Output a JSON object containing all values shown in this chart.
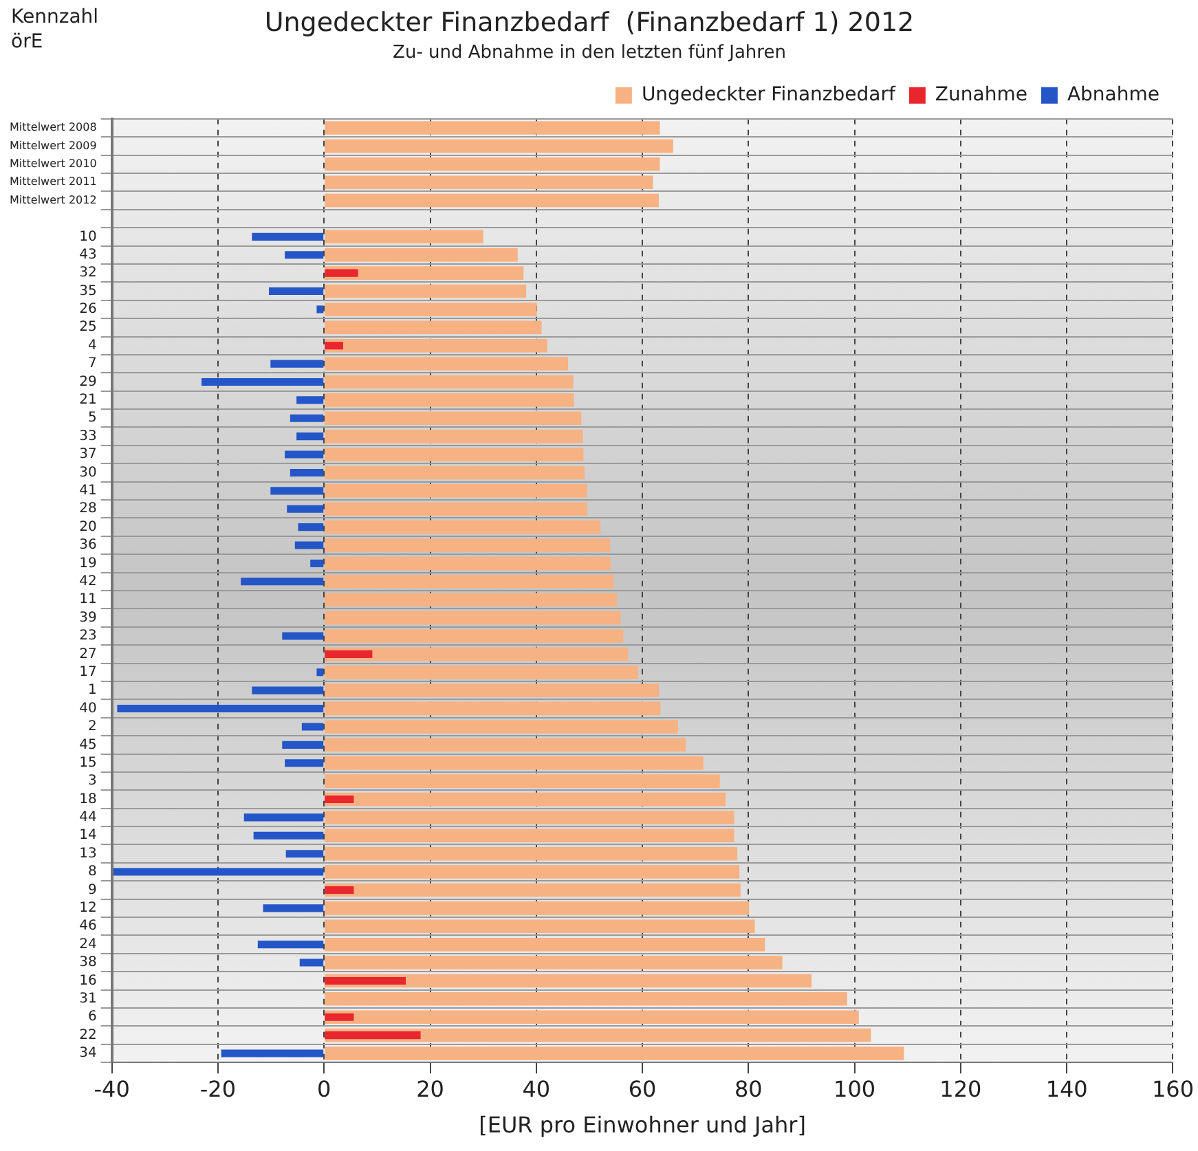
{
  "chart_data": {
    "type": "bar",
    "orientation": "horizontal",
    "title": "Ungedeckter Finanzbedarf  (Finanzbedarf 1) 2012",
    "subtitle": "Zu- und Abnahme in den letzten fünf Jahren",
    "ylabel": "Kennzahl örE",
    "xlabel": "[EUR pro Einwohner und Jahr]",
    "categories": [
      "Mittelwert 2008",
      "Mittelwert 2009",
      "Mittelwert 2010",
      "Mittelwert 2011",
      "Mittelwert 2012",
      null,
      "10",
      "43",
      "32",
      "35",
      "26",
      "25",
      "4",
      "7",
      "29",
      "21",
      "5",
      "33",
      "37",
      "30",
      "41",
      "28",
      "20",
      "36",
      "19",
      "42",
      "11",
      "39",
      "23",
      "27",
      "17",
      "1",
      "40",
      "2",
      "45",
      "15",
      "3",
      "18",
      "44",
      "14",
      "13",
      "8",
      "9",
      "12",
      "46",
      "24",
      "38",
      "16",
      "31",
      "6",
      "22",
      "34"
    ],
    "series": [
      {
        "name": "Ungedeckter Finanzbedarf",
        "color": "#f7b283",
        "values": [
          63.3,
          65.8,
          63.3,
          62.0,
          63.1,
          null,
          30.0,
          36.5,
          37.6,
          38.1,
          40.1,
          41.0,
          42.1,
          46.0,
          47.0,
          47.1,
          48.5,
          48.8,
          48.9,
          49.1,
          49.6,
          49.6,
          52.1,
          53.9,
          54.0,
          54.6,
          55.2,
          55.9,
          56.4,
          57.3,
          59.2,
          63.1,
          63.4,
          66.7,
          68.2,
          71.5,
          74.6,
          75.7,
          77.3,
          77.3,
          77.9,
          78.3,
          78.5,
          80.1,
          81.2,
          83.1,
          86.4,
          91.9,
          98.6,
          100.8,
          103.1,
          109.3
        ]
      },
      {
        "name": "Zunahme",
        "color": "#e8262e",
        "values": [
          null,
          null,
          null,
          null,
          null,
          null,
          null,
          null,
          6.4,
          null,
          null,
          null,
          3.6,
          null,
          null,
          null,
          null,
          null,
          null,
          null,
          null,
          null,
          null,
          null,
          null,
          null,
          null,
          null,
          null,
          9.1,
          null,
          null,
          null,
          null,
          null,
          null,
          null,
          5.6,
          null,
          null,
          null,
          null,
          5.6,
          null,
          null,
          null,
          null,
          15.4,
          null,
          5.6,
          18.2,
          null
        ]
      },
      {
        "name": "Abnahme",
        "color": "#2456c8",
        "values": [
          null,
          null,
          null,
          null,
          null,
          null,
          -13.6,
          -7.4,
          null,
          -10.4,
          -1.4,
          null,
          null,
          -10.1,
          -23.1,
          -5.2,
          -6.4,
          -5.2,
          -7.4,
          -6.4,
          -10.1,
          -7.0,
          -4.9,
          -5.5,
          -2.6,
          -15.7,
          null,
          null,
          -7.9,
          null,
          -1.4,
          -13.6,
          -39.0,
          -4.2,
          -7.9,
          -7.4,
          null,
          null,
          -15.1,
          -13.3,
          -7.2,
          -39.7,
          null,
          -11.5,
          null,
          -12.5,
          -4.6,
          null,
          null,
          null,
          null,
          -19.4
        ]
      }
    ],
    "xlim": [
      -40,
      160
    ],
    "xticks": [
      -40,
      -20,
      0,
      20,
      40,
      60,
      80,
      100,
      120,
      140,
      160
    ],
    "grid": true,
    "legend": "top right"
  }
}
